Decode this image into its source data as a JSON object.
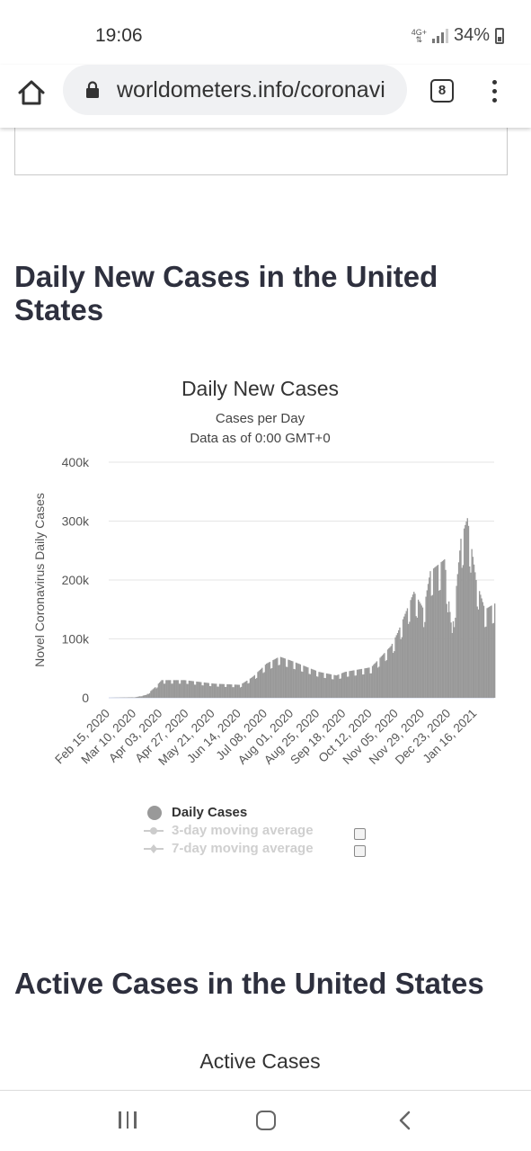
{
  "status_bar": {
    "time": "19:06",
    "network": "4G+",
    "battery": "34%"
  },
  "browser": {
    "url": "worldometers.info/coronavi",
    "tab_count": "8"
  },
  "sections": {
    "daily_title": "Daily New Cases in the United States",
    "active_title": "Active Cases in the United States"
  },
  "chart_data": {
    "type": "bar",
    "title": "Daily New Cases",
    "subtitle_1": "Cases per Day",
    "subtitle_2": "Data as of 0:00 GMT+0",
    "ylabel": "Novel Coronavirus Daily Cases",
    "ylim": [
      0,
      400000
    ],
    "y_ticks": [
      {
        "value": 0,
        "label": "0"
      },
      {
        "value": 100000,
        "label": "100k"
      },
      {
        "value": 200000,
        "label": "200k"
      },
      {
        "value": 300000,
        "label": "300k"
      },
      {
        "value": 400000,
        "label": "400k"
      }
    ],
    "x_tick_labels": [
      "Feb 15, 2020",
      "Mar 10, 2020",
      "Apr 03, 2020",
      "Apr 27, 2020",
      "May 21, 2020",
      "Jun 14, 2020",
      "Jul 08, 2020",
      "Aug 01, 2020",
      "Aug 25, 2020",
      "Sep 18, 2020",
      "Oct 12, 2020",
      "Nov 05, 2020",
      "Nov 29, 2020",
      "Dec 23, 2020",
      "Jan 16, 2021"
    ],
    "x_start": "2020-02-15",
    "x_end": "2021-02-02",
    "grid": true,
    "series": [
      {
        "name": "Daily Cases",
        "color": "#999999",
        "values": [
          {
            "date": "2020-02-15",
            "value": 0
          },
          {
            "date": "2020-03-10",
            "value": 1000
          },
          {
            "date": "2020-03-20",
            "value": 5000
          },
          {
            "date": "2020-03-28",
            "value": 18000
          },
          {
            "date": "2020-04-03",
            "value": 30000
          },
          {
            "date": "2020-04-24",
            "value": 30000
          },
          {
            "date": "2020-05-21",
            "value": 24000
          },
          {
            "date": "2020-06-14",
            "value": 22000
          },
          {
            "date": "2020-06-25",
            "value": 35000
          },
          {
            "date": "2020-07-08",
            "value": 58000
          },
          {
            "date": "2020-07-20",
            "value": 70000
          },
          {
            "date": "2020-08-01",
            "value": 62000
          },
          {
            "date": "2020-08-25",
            "value": 44000
          },
          {
            "date": "2020-09-10",
            "value": 38000
          },
          {
            "date": "2020-09-18",
            "value": 44000
          },
          {
            "date": "2020-10-12",
            "value": 52000
          },
          {
            "date": "2020-10-30",
            "value": 88000
          },
          {
            "date": "2020-11-05",
            "value": 110000
          },
          {
            "date": "2020-11-20",
            "value": 180000
          },
          {
            "date": "2020-11-29",
            "value": 150000
          },
          {
            "date": "2020-12-05",
            "value": 215000
          },
          {
            "date": "2020-12-18",
            "value": 235000
          },
          {
            "date": "2020-12-25",
            "value": 110000
          },
          {
            "date": "2021-01-02",
            "value": 270000
          },
          {
            "date": "2021-01-08",
            "value": 305000
          },
          {
            "date": "2021-01-16",
            "value": 200000
          },
          {
            "date": "2021-01-24",
            "value": 150000
          },
          {
            "date": "2021-02-02",
            "value": 160000
          }
        ]
      },
      {
        "name": "3-day moving average",
        "enabled": false
      },
      {
        "name": "7-day moving average",
        "enabled": false
      }
    ],
    "legend_position": "bottom"
  },
  "active_chart": {
    "title": "Active Cases"
  }
}
